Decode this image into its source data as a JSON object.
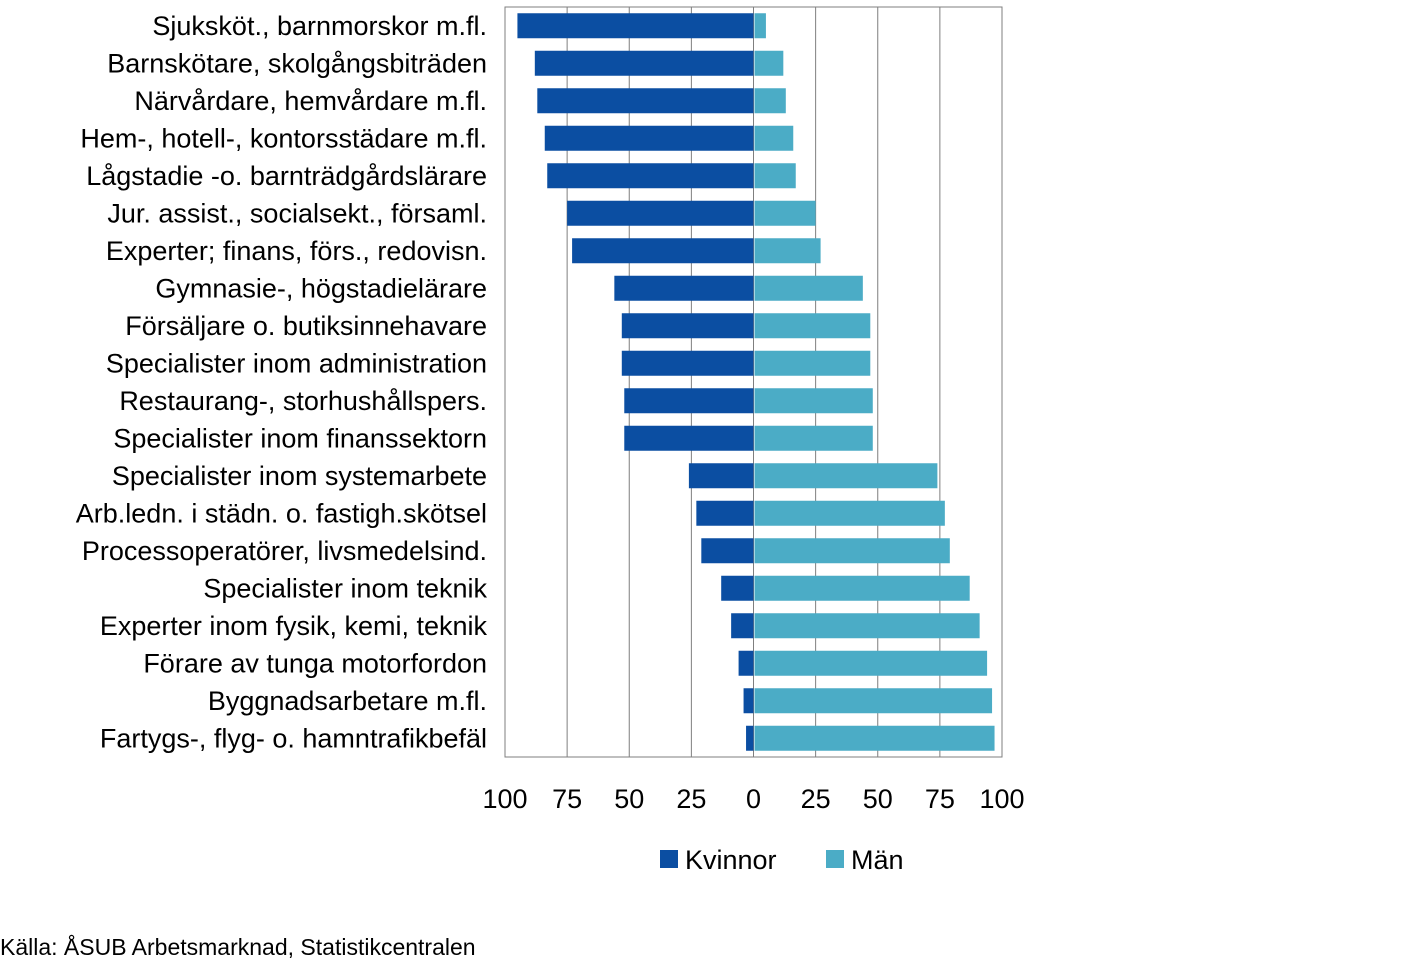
{
  "chart_data": {
    "type": "bar",
    "orientation": "horizontal-diverging",
    "categories": [
      "Sjuksköt., barnmorskor m.fl.",
      "Barnskötare, skolgångsbiträden",
      "Närvårdare, hemvårdare m.fl.",
      "Hem-, hotell-, kontorsstädare m.fl.",
      "Lågstadie -o. barnträdgårdslärare",
      "Jur. assist., socialsekt., församl.",
      "Experter; finans, förs., redovisn.",
      "Gymnasie-, högstadielärare",
      "Försäljare o. butiksinnehavare",
      "Specialister inom administration",
      "Restaurang-, storhushållspers.",
      "Specialister inom finanssektorn",
      "Specialister inom systemarbete",
      "Arb.ledn. i städn. o. fastigh.skötsel",
      "Processoperatörer, livsmedelsind.",
      "Specialister inom teknik",
      "Experter inom fysik, kemi, teknik",
      "Förare av tunga motorfordon",
      "Byggnadsarbetare m.fl.",
      "Fartygs-, flyg- o. hamntrafikbefäl"
    ],
    "series": [
      {
        "name": "Kvinnor",
        "color": "#0b4ea2",
        "values": [
          95,
          88,
          87,
          84,
          83,
          75,
          73,
          56,
          53,
          53,
          52,
          52,
          26,
          23,
          21,
          13,
          9,
          6,
          4,
          3
        ]
      },
      {
        "name": "Män",
        "color": "#4bacc6",
        "values": [
          5,
          12,
          13,
          16,
          17,
          25,
          27,
          44,
          47,
          47,
          48,
          48,
          74,
          77,
          79,
          87,
          91,
          94,
          96,
          97
        ]
      }
    ],
    "xlim": [
      -100,
      100
    ],
    "xticks": [
      -100,
      -75,
      -50,
      -25,
      0,
      25,
      50,
      75,
      100
    ],
    "xtick_labels": [
      "100",
      "75",
      "50",
      "25",
      "0",
      "25",
      "50",
      "75",
      "100"
    ],
    "grid": true,
    "legend": "bottom-center"
  },
  "source": "Källa: ÅSUB Arbetsmarknad, Statistikcentralen"
}
